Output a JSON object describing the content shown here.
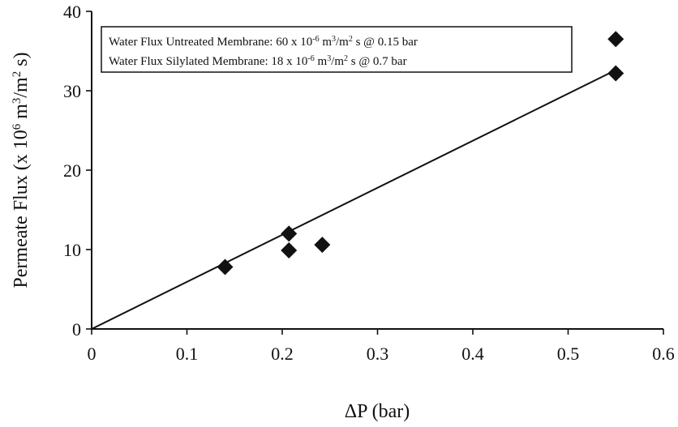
{
  "chart_data": {
    "type": "scatter",
    "xlabel": "ΔP  (bar)",
    "ylabel_main": "Permeate Flux (x 10",
    "ylabel_sup6": "6",
    "ylabel_unit": " m",
    "ylabel_sup3": "3",
    "ylabel_unit2": "/m",
    "ylabel_sup2": "2",
    "ylabel_tail": " s)",
    "xlim": [
      0,
      0.6
    ],
    "ylim": [
      0,
      40
    ],
    "x_ticks": [
      "0",
      "0.1",
      "0.2",
      "0.3",
      "0.4",
      "0.5",
      "0.6"
    ],
    "y_ticks": [
      "0",
      "10",
      "20",
      "30",
      "40"
    ],
    "points": [
      {
        "x": 0.14,
        "y": 7.8
      },
      {
        "x": 0.207,
        "y": 12.0
      },
      {
        "x": 0.207,
        "y": 9.9
      },
      {
        "x": 0.242,
        "y": 10.6
      },
      {
        "x": 0.55,
        "y": 36.5
      },
      {
        "x": 0.55,
        "y": 32.2
      }
    ],
    "trendline": {
      "x": [
        0,
        0.55
      ],
      "y": [
        0,
        32.6
      ]
    },
    "annotation": {
      "line1": {
        "prefix": "Water Flux Untreated Membrane:  60 x 10",
        "sup1": "-6",
        "mid": " m",
        "sup2": "3",
        "mid2": "/m",
        "sup3": "2",
        "suffix": " s @ 0.15 bar"
      },
      "line2": {
        "prefix": "Water Flux Silylated Membrane:  18 x 10",
        "sup1": "-6",
        "mid": " m",
        "sup2": "3",
        "mid2": "/m",
        "sup3": "2",
        "suffix": " s @ 0.7 bar"
      }
    },
    "grid": false
  }
}
